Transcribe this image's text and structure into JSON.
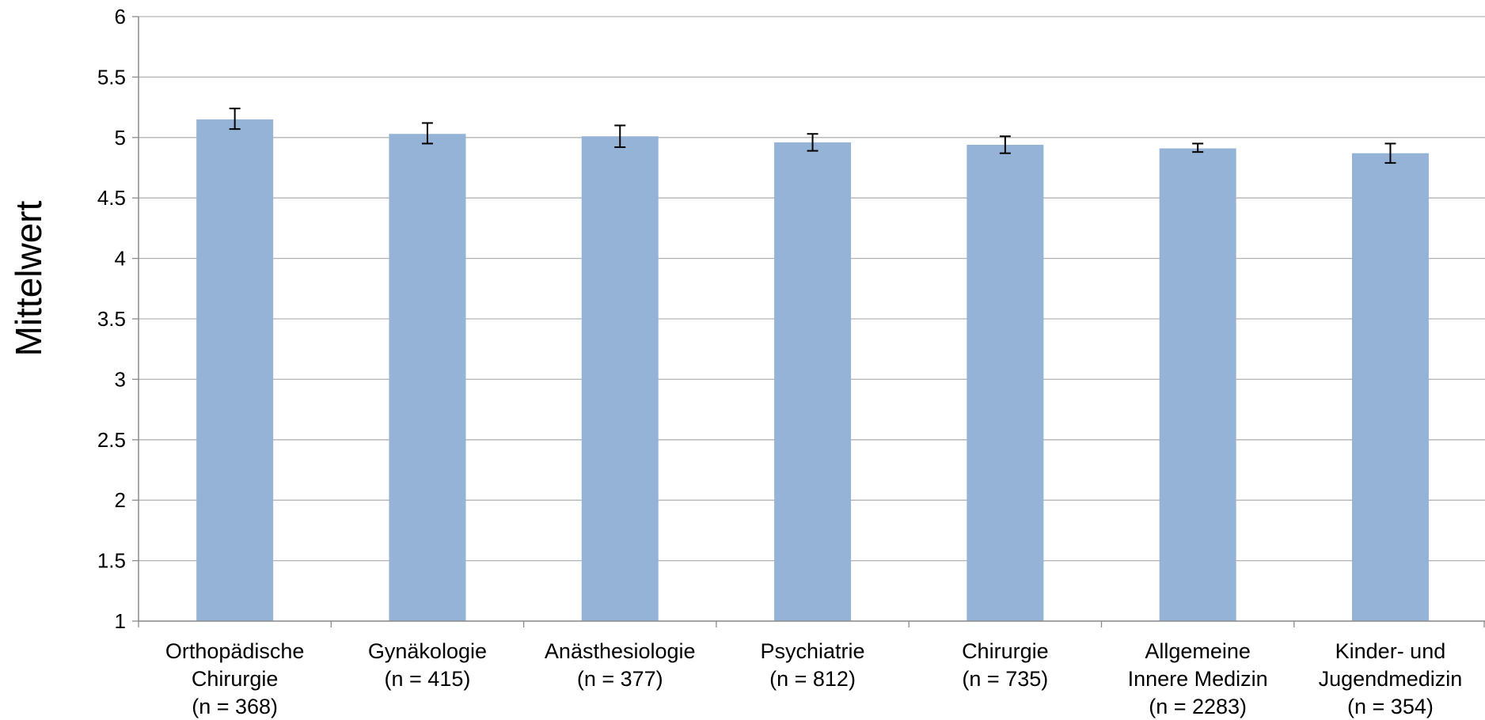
{
  "chart_data": {
    "type": "bar",
    "title": "",
    "xlabel": "",
    "ylabel": "Mittelwert",
    "ylim": [
      1,
      6
    ],
    "y_ticks": [
      "1",
      "1.5",
      "2",
      "2.5",
      "3",
      "3.5",
      "4",
      "4.5",
      "5",
      "5.5",
      "6"
    ],
    "grid": true,
    "bar_color": "#95b3d7",
    "categories": [
      {
        "lines": [
          "Orthopädische",
          "Chirurgie",
          "(n = 368)"
        ]
      },
      {
        "lines": [
          "Gynäkologie",
          "(n = 415)"
        ]
      },
      {
        "lines": [
          "Anästhesiologie",
          "(n = 377)"
        ]
      },
      {
        "lines": [
          "Psychiatrie",
          "(n = 812)"
        ]
      },
      {
        "lines": [
          "Chirurgie",
          "(n = 735)"
        ]
      },
      {
        "lines": [
          "Allgemeine",
          "Innere Medizin",
          "(n = 2283)"
        ]
      },
      {
        "lines": [
          "Kinder- und",
          "Jugendmedizin",
          "(n = 354)"
        ]
      }
    ],
    "values": [
      5.15,
      5.03,
      5.01,
      4.96,
      4.94,
      4.91,
      4.87
    ],
    "error_low": [
      5.07,
      4.95,
      4.92,
      4.89,
      4.87,
      4.88,
      4.79
    ],
    "error_high": [
      5.24,
      5.12,
      5.1,
      5.03,
      5.01,
      4.95,
      4.95
    ]
  }
}
